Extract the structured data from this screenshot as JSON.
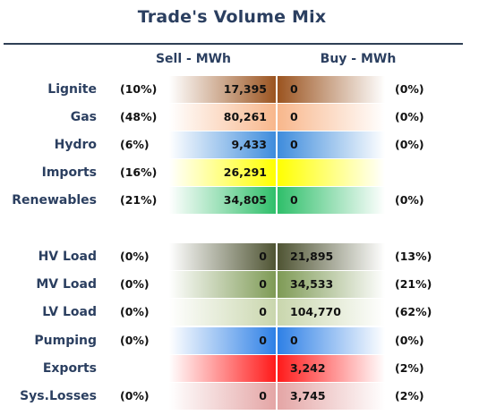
{
  "title": "Trade's Volume Mix",
  "columns": {
    "sell": "Sell - MWh",
    "buy": "Buy - MWh"
  },
  "rows": [
    {
      "label": "Lignite",
      "sell_pct": "(10%)",
      "sell_value": "17,395",
      "buy_value": "0",
      "buy_pct": "(0%)",
      "color": "#9b5420"
    },
    {
      "label": "Gas",
      "sell_pct": "(48%)",
      "sell_value": "80,261",
      "buy_value": "0",
      "buy_pct": "(0%)",
      "color": "#f8b78c"
    },
    {
      "label": "Hydro",
      "sell_pct": "(6%)",
      "sell_value": "9,433",
      "buy_value": "0",
      "buy_pct": "(0%)",
      "color": "#3e8cdc"
    },
    {
      "label": "Imports",
      "sell_pct": "(16%)",
      "sell_value": "26,291",
      "buy_value": "",
      "buy_pct": "",
      "color": "#ffff00"
    },
    {
      "label": "Renewables",
      "sell_pct": "(21%)",
      "sell_value": "34,805",
      "buy_value": "0",
      "buy_pct": "(0%)",
      "color": "#2fbf6a"
    },
    {
      "label": "HV Load",
      "sell_pct": "(0%)",
      "sell_value": "0",
      "buy_value": "21,895",
      "buy_pct": "(13%)",
      "color": "#4f5433"
    },
    {
      "label": "MV Load",
      "sell_pct": "(0%)",
      "sell_value": "0",
      "buy_value": "34,533",
      "buy_pct": "(21%)",
      "color": "#7e9a55"
    },
    {
      "label": "LV Load",
      "sell_pct": "(0%)",
      "sell_value": "0",
      "buy_value": "104,770",
      "buy_pct": "(62%)",
      "color": "#c9d6ad"
    },
    {
      "label": "Pumping",
      "sell_pct": "(0%)",
      "sell_value": "0",
      "buy_value": "0",
      "buy_pct": "(0%)",
      "color": "#2e80e6"
    },
    {
      "label": "Exports",
      "sell_pct": "",
      "sell_value": "",
      "buy_value": "3,242",
      "buy_pct": "(2%)",
      "color": "#ff1a1a"
    },
    {
      "label": "Sys.Losses",
      "sell_pct": "(0%)",
      "sell_value": "0",
      "buy_value": "3,745",
      "buy_pct": "(2%)",
      "color": "#e4a5a5"
    }
  ]
}
